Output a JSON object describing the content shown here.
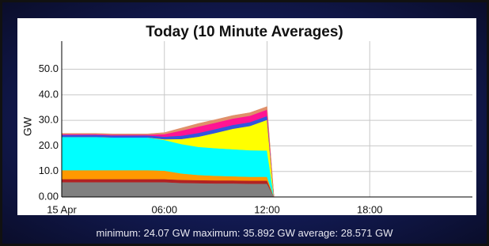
{
  "chart_data": {
    "type": "stacked_area",
    "title": "Today (10 Minute Averages)",
    "ylabel": "GW",
    "x": [
      0,
      1,
      2,
      3,
      4,
      5,
      6,
      7,
      8,
      9,
      10,
      11,
      12,
      12.4
    ],
    "xlim": [
      0,
      24
    ],
    "xticks": [
      {
        "value": 0,
        "label": "15 Apr"
      },
      {
        "value": 6,
        "label": "06:00"
      },
      {
        "value": 12,
        "label": "12:00"
      },
      {
        "value": 18,
        "label": "18:00"
      }
    ],
    "ylim": [
      0,
      61
    ],
    "yticks": [
      {
        "value": 0,
        "label": "0.00"
      },
      {
        "value": 10,
        "label": "10.0"
      },
      {
        "value": 20,
        "label": "20.0"
      },
      {
        "value": 30,
        "label": "30.0"
      },
      {
        "value": 40,
        "label": "40.0"
      },
      {
        "value": 50,
        "label": "50.0"
      }
    ],
    "grid": true,
    "series": [
      {
        "color": "#808080",
        "values": [
          5.8,
          5.8,
          5.8,
          5.8,
          5.8,
          5.8,
          5.8,
          5.5,
          5.4,
          5.3,
          5.3,
          5.2,
          5.2,
          0
        ]
      },
      {
        "color": "#b22222",
        "values": [
          1.2,
          1.2,
          1.2,
          1.2,
          1.2,
          1.2,
          1.2,
          1.2,
          1.2,
          1.2,
          1.2,
          1.2,
          1.2,
          0
        ]
      },
      {
        "color": "#ff9900",
        "values": [
          3.5,
          3.5,
          3.5,
          3.5,
          3.5,
          3.5,
          3.3,
          2.5,
          2,
          1.8,
          1.6,
          1.5,
          1.5,
          0
        ]
      },
      {
        "color": "#00ffff",
        "values": [
          13,
          13,
          13,
          12.8,
          12.8,
          12.8,
          12,
          11.5,
          11,
          10.8,
          10.6,
          10.4,
          10.3,
          0
        ]
      },
      {
        "color": "#ffff00",
        "values": [
          0,
          0,
          0,
          0,
          0,
          0,
          0.3,
          2,
          4,
          6,
          8,
          9.5,
          12,
          0
        ]
      },
      {
        "color": "#3355dd",
        "values": [
          0.8,
          0.8,
          0.8,
          0.8,
          0.8,
          0.8,
          1,
          1.3,
          1.5,
          1.5,
          1.5,
          1.5,
          1.5,
          0
        ]
      },
      {
        "color": "#ff1493",
        "values": [
          0.3,
          0.3,
          0.3,
          0.3,
          0.3,
          0.3,
          1,
          2,
          2.5,
          2.5,
          2.5,
          2.5,
          2.5,
          0
        ]
      },
      {
        "color": "#e0906a",
        "values": [
          0.3,
          0.3,
          0.3,
          0.3,
          0.3,
          0.3,
          0.6,
          1,
          1.2,
          1.2,
          1.2,
          1.2,
          1.2,
          0
        ]
      }
    ],
    "footer": "minimum: 24.07 GW maximum: 35.892 GW average: 28.571 GW"
  }
}
